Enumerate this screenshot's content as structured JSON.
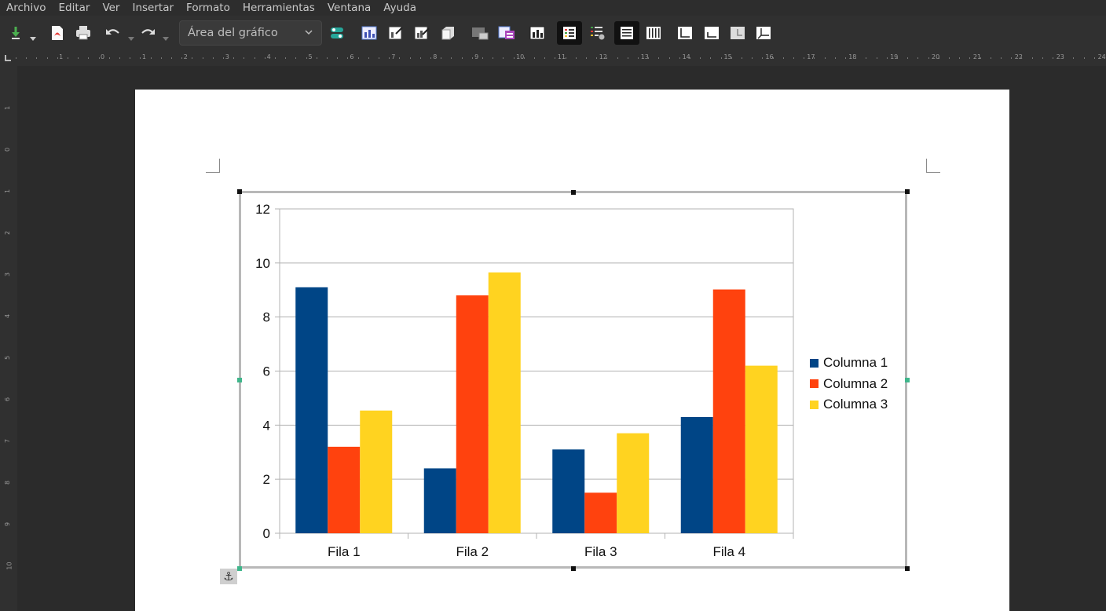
{
  "menubar": {
    "items": [
      "Archivo",
      "Editar",
      "Ver",
      "Insertar",
      "Formato",
      "Herramientas",
      "Ventana",
      "Ayuda"
    ]
  },
  "toolbar": {
    "element_select": "Área del gráfico",
    "icons": [
      "insert-icon",
      "export-pdf-icon",
      "print-icon",
      "undo-icon",
      "redo-icon",
      "chart-type-icon",
      "format-selection-icon",
      "titles-icon",
      "legend-icon",
      "3d-view-icon",
      "data-table-icon",
      "data-ranges-icon",
      "chart-wall-icon",
      "legend-on-off-icon",
      "data-table-toggle-icon",
      "horizontal-grid-icon",
      "vertical-grid-icon",
      "x-axis-icon",
      "y-axis-icon",
      "z-axis-icon",
      "axes-icon"
    ]
  },
  "ruler": {
    "horizontal": [
      "1",
      "0",
      "1",
      "2",
      "3",
      "4",
      "5",
      "6",
      "7",
      "8",
      "9",
      "10",
      "11",
      "12",
      "13",
      "14",
      "15",
      "16",
      "17",
      "18",
      "19",
      "20",
      "21",
      "22",
      "23",
      "24"
    ],
    "vertical": [
      "1",
      "0",
      "1",
      "2",
      "3",
      "4",
      "5",
      "6",
      "7",
      "8",
      "9",
      "10"
    ]
  },
  "colors": {
    "series1": "#004586",
    "series2": "#ff420e",
    "series3": "#ffd320",
    "grid": "#b3b3b3"
  },
  "chart_data": {
    "type": "bar",
    "categories": [
      "Fila 1",
      "Fila 2",
      "Fila 3",
      "Fila 4"
    ],
    "series": [
      {
        "name": "Columna 1",
        "values": [
          9.1,
          2.4,
          3.1,
          4.3
        ]
      },
      {
        "name": "Columna 2",
        "values": [
          3.2,
          8.8,
          1.5,
          9.02
        ]
      },
      {
        "name": "Columna 3",
        "values": [
          4.54,
          9.65,
          3.7,
          6.2
        ]
      }
    ],
    "yticks": [
      "0",
      "2",
      "4",
      "6",
      "8",
      "10",
      "12"
    ],
    "ylim": [
      0,
      12
    ],
    "grid": true,
    "legend_position": "right"
  }
}
